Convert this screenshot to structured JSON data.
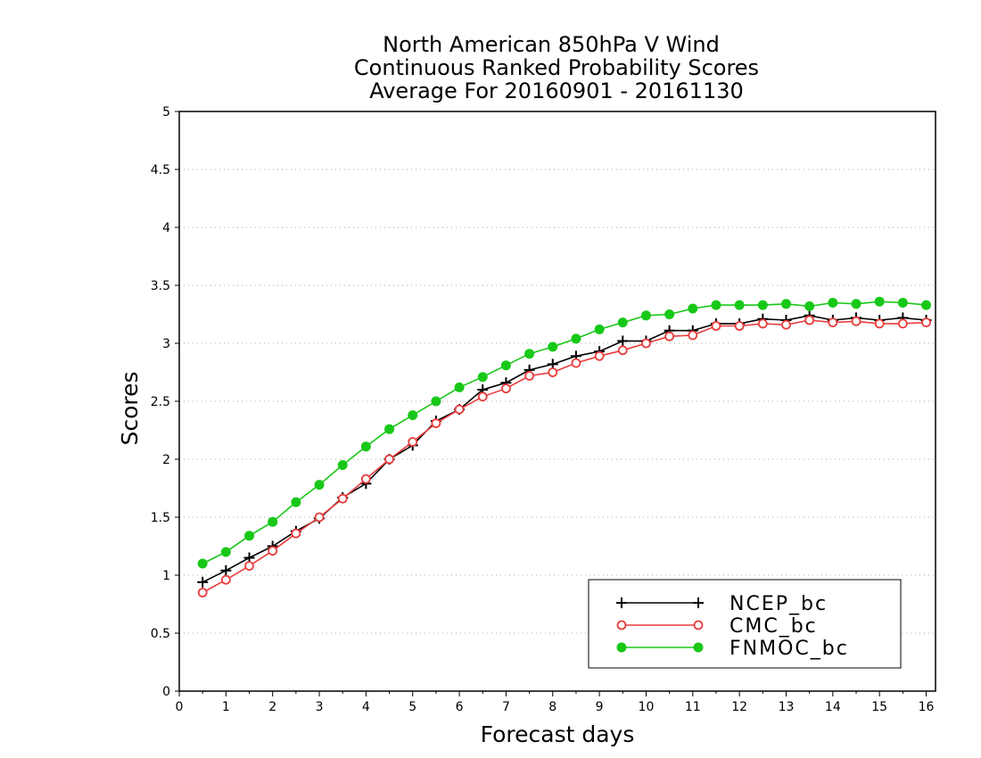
{
  "chart_data": {
    "type": "line",
    "title_lines": [
      "North American 850hPa V Wind",
      "Continuous Ranked Probability Scores",
      "Average For 20160901 - 20161130"
    ],
    "xlabel": "Forecast days",
    "ylabel": "Scores",
    "xlim": [
      0,
      16.2
    ],
    "ylim": [
      0,
      5
    ],
    "x_ticks": [
      "0",
      "1",
      "2",
      "3",
      "4",
      "5",
      "6",
      "7",
      "8",
      "9",
      "10",
      "11",
      "12",
      "13",
      "14",
      "15",
      "16"
    ],
    "y_ticks": [
      "0",
      "0.5",
      "1",
      "1.5",
      "2",
      "2.5",
      "3",
      "3.5",
      "4",
      "4.5",
      "5"
    ],
    "grid": "horizontal dotted",
    "legend_position": "bottom-right",
    "x": [
      0.5,
      1,
      1.5,
      2,
      2.5,
      3,
      3.5,
      4,
      4.5,
      5,
      5.5,
      6,
      6.5,
      7,
      7.5,
      8,
      8.5,
      9,
      9.5,
      10,
      10.5,
      11,
      11.5,
      12,
      12.5,
      13,
      13.5,
      14,
      14.5,
      15,
      15.5,
      16
    ],
    "series": [
      {
        "name": "NCEP_bc",
        "color": "#000000",
        "marker": "plus",
        "values": [
          0.94,
          1.04,
          1.15,
          1.25,
          1.38,
          1.49,
          1.67,
          1.79,
          2.0,
          2.12,
          2.33,
          2.43,
          2.6,
          2.66,
          2.77,
          2.82,
          2.89,
          2.93,
          3.02,
          3.02,
          3.11,
          3.11,
          3.17,
          3.17,
          3.21,
          3.2,
          3.24,
          3.2,
          3.22,
          3.2,
          3.22,
          3.2
        ]
      },
      {
        "name": "CMC_bc",
        "color": "#e83c3c",
        "marker": "open-circle",
        "values": [
          0.85,
          0.96,
          1.08,
          1.21,
          1.36,
          1.5,
          1.66,
          1.83,
          2.0,
          2.15,
          2.31,
          2.43,
          2.54,
          2.61,
          2.72,
          2.75,
          2.83,
          2.89,
          2.94,
          3.0,
          3.06,
          3.07,
          3.15,
          3.15,
          3.17,
          3.16,
          3.2,
          3.18,
          3.19,
          3.17,
          3.17,
          3.18
        ]
      },
      {
        "name": "FNMOC_bc",
        "color": "#18c818",
        "marker": "filled-circle",
        "values": [
          1.1,
          1.2,
          1.34,
          1.46,
          1.63,
          1.78,
          1.95,
          2.11,
          2.26,
          2.38,
          2.5,
          2.62,
          2.71,
          2.81,
          2.91,
          2.97,
          3.04,
          3.12,
          3.18,
          3.24,
          3.25,
          3.3,
          3.33,
          3.33,
          3.33,
          3.34,
          3.32,
          3.35,
          3.34,
          3.36,
          3.35,
          3.33
        ]
      }
    ]
  }
}
